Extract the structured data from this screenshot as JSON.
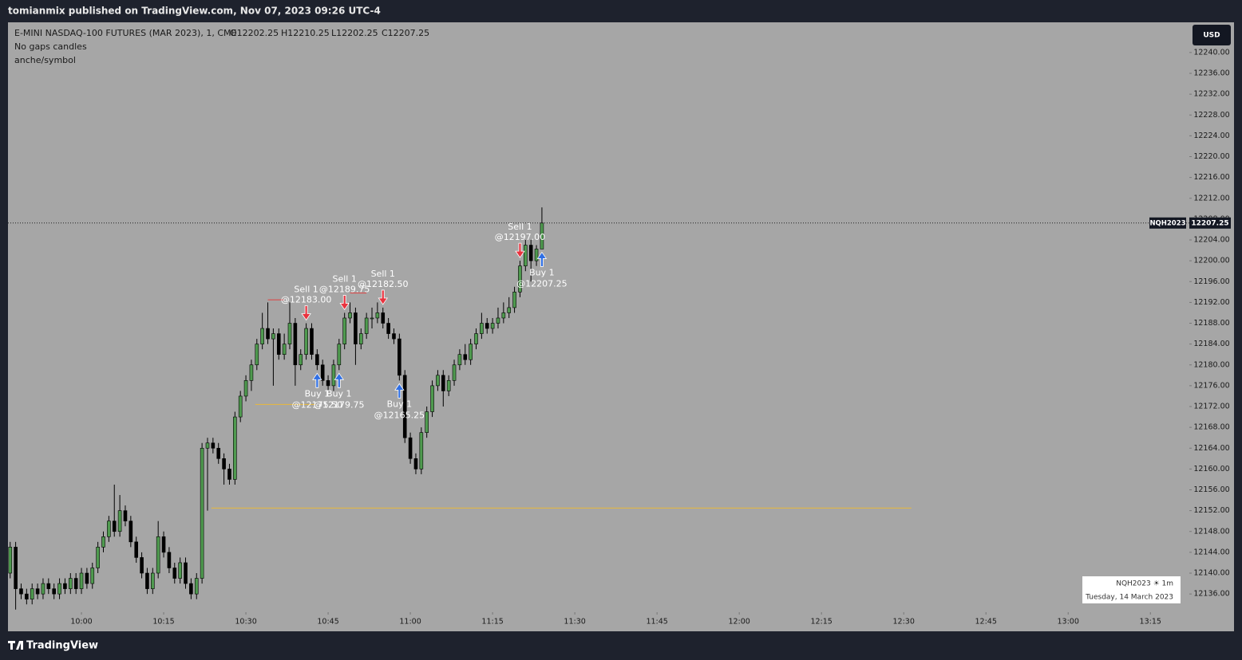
{
  "header": {
    "publisher": "tomianmix published on TradingView.com, Nov 07, 2023 09:26 UTC-4",
    "symbol": "E-MINI NASDAQ-100 FUTURES (MAR 2023), 1, CME",
    "open": "O12202.25",
    "high": "H12210.25",
    "low": "L12202.25",
    "close": "C12207.25",
    "indicator1": "No gaps candles",
    "indicator2": "anche/symbol",
    "currency": "USD"
  },
  "info_box": {
    "symbol": "NQH2023 ☀ 1m",
    "date": "Tuesday, 14 March 2023"
  },
  "footer": {
    "brand": "TradingView"
  },
  "chart_data": {
    "type": "candlestick",
    "up_color": "#4f9a4f",
    "down_color": "#000000",
    "xlim": [
      586.6,
      802.1
    ],
    "ylim": [
      12132.5,
      12245.8
    ],
    "xticks": [
      {
        "value": 600,
        "label": "10:00"
      },
      {
        "value": 615,
        "label": "10:15"
      },
      {
        "value": 630,
        "label": "10:30"
      },
      {
        "value": 645,
        "label": "10:45"
      },
      {
        "value": 660,
        "label": "11:00"
      },
      {
        "value": 675,
        "label": "11:15"
      },
      {
        "value": 690,
        "label": "11:30"
      },
      {
        "value": 705,
        "label": "11:45"
      },
      {
        "value": 720,
        "label": "12:00"
      },
      {
        "value": 735,
        "label": "12:15"
      },
      {
        "value": 750,
        "label": "12:30"
      },
      {
        "value": 765,
        "label": "12:45"
      },
      {
        "value": 780,
        "label": "13:00"
      },
      {
        "value": 795,
        "label": "13:15"
      }
    ],
    "yticks": [
      {
        "value": 12136,
        "label": "12136.00"
      },
      {
        "value": 12140,
        "label": "12140.00"
      },
      {
        "value": 12144,
        "label": "12144.00"
      },
      {
        "value": 12148,
        "label": "12148.00"
      },
      {
        "value": 12152,
        "label": "12152.00"
      },
      {
        "value": 12156,
        "label": "12156.00"
      },
      {
        "value": 12160,
        "label": "12160.00"
      },
      {
        "value": 12164,
        "label": "12164.00"
      },
      {
        "value": 12168,
        "label": "12168.00"
      },
      {
        "value": 12172,
        "label": "12172.00"
      },
      {
        "value": 12176,
        "label": "12176.00"
      },
      {
        "value": 12180,
        "label": "12180.00"
      },
      {
        "value": 12184,
        "label": "12184.00"
      },
      {
        "value": 12188,
        "label": "12188.00"
      },
      {
        "value": 12192,
        "label": "12192.00"
      },
      {
        "value": 12196,
        "label": "12196.00"
      },
      {
        "value": 12200,
        "label": "12200.00"
      },
      {
        "value": 12204,
        "label": "12204.00"
      },
      {
        "value": 12208,
        "label": "12208.00"
      },
      {
        "value": 12212,
        "label": "12212.00"
      },
      {
        "value": 12216,
        "label": "12216.00"
      },
      {
        "value": 12220,
        "label": "12220.00"
      },
      {
        "value": 12224,
        "label": "12224.00"
      },
      {
        "value": 12228,
        "label": "12228.00"
      },
      {
        "value": 12232,
        "label": "12232.00"
      },
      {
        "value": 12236,
        "label": "12236.00"
      },
      {
        "value": 12240,
        "label": "12240.00"
      }
    ],
    "x": [
      587,
      588,
      589,
      590,
      591,
      592,
      593,
      594,
      595,
      596,
      597,
      598,
      599,
      600,
      601,
      602,
      603,
      604,
      605,
      606,
      607,
      608,
      609,
      610,
      611,
      612,
      613,
      614,
      615,
      616,
      617,
      618,
      619,
      620,
      621,
      622,
      623,
      624,
      625,
      626,
      627,
      628,
      629,
      630,
      631,
      632,
      633,
      634,
      635,
      636,
      637,
      638,
      639,
      640,
      641,
      642,
      643,
      644,
      645,
      646,
      647,
      648,
      649,
      650,
      651,
      652,
      653,
      654,
      655,
      656,
      657,
      658,
      659,
      660,
      661,
      662,
      663,
      664,
      665,
      666,
      667,
      668,
      669,
      670,
      671,
      672,
      673,
      674,
      675,
      676,
      677,
      678,
      679,
      680,
      681,
      682,
      683,
      684
    ],
    "open": [
      12140,
      12145,
      12137,
      12136,
      12135,
      12137,
      12136,
      12138,
      12137,
      12136,
      12138,
      12137,
      12139,
      12137,
      12140,
      12138,
      12141,
      12145,
      12147,
      12150,
      12148,
      12152,
      12150,
      12146,
      12143,
      12140,
      12137,
      12140,
      12147,
      12144,
      12141,
      12139,
      12142,
      12138,
      12136,
      12139,
      12164,
      12165,
      12164,
      12162,
      12160,
      12158,
      12170,
      12174,
      12177,
      12180,
      12184,
      12187,
      12185,
      12186,
      12182,
      12184,
      12188,
      12180,
      12182,
      12187,
      12182,
      12180,
      12177,
      12176,
      12180,
      12184,
      12189,
      12190,
      12184,
      12186,
      12189,
      12189,
      12190,
      12188,
      12186,
      12185,
      12178,
      12166,
      12162,
      12160,
      12167,
      12171,
      12176,
      12178,
      12175,
      12177,
      12180,
      12182,
      12181,
      12184,
      12186,
      12188,
      12187,
      12188,
      12189,
      12190,
      12191,
      12194,
      12199,
      12203,
      12200,
      12202.25
    ],
    "high": [
      12146,
      12146,
      12138,
      12137,
      12138,
      12138,
      12139,
      12139,
      12138,
      12139,
      12139,
      12140,
      12140,
      12141,
      12141,
      12142,
      12146,
      12148,
      12151,
      12157,
      12155,
      12153,
      12151,
      12147,
      12144,
      12141,
      12141,
      12150,
      12148,
      12145,
      12142,
      12143,
      12143,
      12139,
      12140,
      12165,
      12166,
      12166,
      12165,
      12163,
      12161,
      12171,
      12175,
      12178,
      12181,
      12185,
      12190,
      12192,
      12187,
      12187,
      12186,
      12192,
      12189,
      12183,
      12188,
      12188,
      12183,
      12181,
      12178,
      12181,
      12185,
      12190,
      12192,
      12191,
      12187,
      12190,
      12191,
      12192,
      12191,
      12189,
      12187,
      12186,
      12179,
      12167,
      12163,
      12168,
      12172,
      12177,
      12179,
      12179,
      12178,
      12181,
      12183,
      12184,
      12185,
      12187,
      12190,
      12189,
      12189,
      12191,
      12192,
      12193,
      12195,
      12200,
      12204,
      12204,
      12203,
      12210.25
    ],
    "low": [
      12139,
      12133,
      12135,
      12134,
      12134,
      12135,
      12135,
      12136,
      12135,
      12135,
      12136,
      12136,
      12136,
      12136,
      12137,
      12137,
      12140,
      12144,
      12146,
      12147,
      12147,
      12149,
      12145,
      12142,
      12139,
      12136,
      12136,
      12139,
      12143,
      12140,
      12138,
      12138,
      12137,
      12135,
      12135,
      12138,
      12152,
      12163,
      12161,
      12157,
      12157,
      12157,
      12169,
      12173,
      12175,
      12179,
      12183,
      12184,
      12176,
      12181,
      12181,
      12183,
      12176,
      12179,
      12181,
      12181,
      12179,
      12176,
      12175,
      12175,
      12179,
      12183,
      12188,
      12180,
      12183,
      12185,
      12187,
      12188,
      12187,
      12185,
      12184,
      12177,
      12165,
      12161,
      12159,
      12159,
      12166,
      12170,
      12175,
      12172,
      12174,
      12176,
      12179,
      12180,
      12180,
      12183,
      12185,
      12186,
      12186,
      12187,
      12188,
      12189,
      12190,
      12193,
      12198,
      12196,
      12199,
      12202.25
    ],
    "close": [
      12145,
      12137,
      12136,
      12135,
      12137,
      12136,
      12138,
      12137,
      12136,
      12138,
      12137,
      12139,
      12137,
      12140,
      12138,
      12141,
      12145,
      12147,
      12150,
      12148,
      12152,
      12150,
      12146,
      12143,
      12140,
      12137,
      12140,
      12147,
      12144,
      12141,
      12139,
      12142,
      12138,
      12136,
      12139,
      12164,
      12165,
      12164,
      12162,
      12160,
      12158,
      12170,
      12174,
      12177,
      12180,
      12184,
      12187,
      12185,
      12186,
      12182,
      12184,
      12188,
      12180,
      12182,
      12187,
      12182,
      12180,
      12177,
      12176,
      12180,
      12184,
      12189,
      12190,
      12184,
      12186,
      12189,
      12189,
      12190,
      12188,
      12186,
      12185,
      12178,
      12166,
      12162,
      12160,
      12167,
      12171,
      12176,
      12178,
      12175,
      12177,
      12180,
      12182,
      12181,
      12184,
      12186,
      12188,
      12187,
      12188,
      12189,
      12190,
      12191,
      12194,
      12199,
      12203,
      12200,
      12202.25,
      12207.25
    ],
    "levels": [
      {
        "value": 12152.5,
        "x": [
          623.7,
          751.4
        ],
        "color": "#e8b83a"
      },
      {
        "value": 12172.4,
        "x": [
          631.7,
          642.7
        ],
        "color": "#e8b83a"
      },
      {
        "value": 12192.5,
        "x": [
          634,
          637
        ],
        "color": "#e04040"
      },
      {
        "value": 12193.8,
        "x": [
          649,
          652
        ],
        "color": "#e04040"
      }
    ],
    "last_price": {
      "value": 12207.25,
      "symbol": "NQH2023",
      "label": "12207.25"
    },
    "signals": [
      {
        "text": "Sell 1",
        "label": "@12183.00",
        "value": 12183,
        "x": 641,
        "side": "sell"
      },
      {
        "text": "Sell 1",
        "label": "@12189.75",
        "value": 12189.75,
        "x": 648,
        "side": "sell"
      },
      {
        "text": "Sell 1",
        "label": "@12182.50",
        "value": 12182.5,
        "x": 655,
        "side": "sell"
      },
      {
        "text": "Buy 1",
        "label": "@12175.50",
        "value": 12175.5,
        "x": 643,
        "side": "buy"
      },
      {
        "text": "Buy 1",
        "label": "@12179.75",
        "value": 12179.75,
        "x": 647,
        "side": "buy"
      },
      {
        "text": "Buy 1",
        "label": "@12165.25",
        "value": 12165.25,
        "x": 658,
        "side": "buy"
      },
      {
        "text": "Sell 1",
        "label": "@12197.00",
        "value": 12197,
        "x": 680,
        "side": "sell"
      },
      {
        "text": "Buy 1",
        "label": "@12207.25",
        "value": 12207.25,
        "x": 684,
        "side": "buy"
      }
    ]
  }
}
